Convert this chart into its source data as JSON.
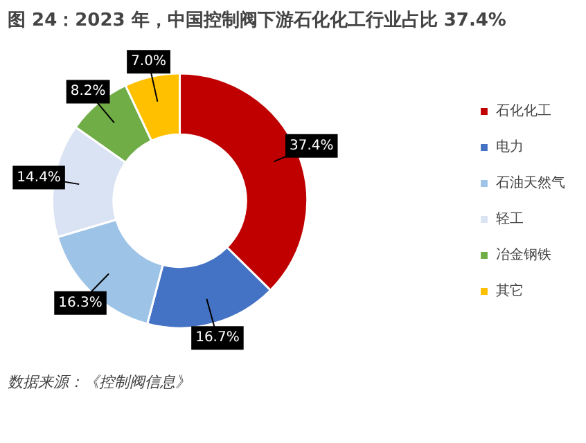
{
  "chart_data": {
    "type": "donut",
    "title": "图 24：2023 年，中国控制阀下游石化化工行业占比 37.4%",
    "categories": [
      "石化化工",
      "电力",
      "石油天然气",
      "轻工",
      "冶金钢铁",
      "其它"
    ],
    "values": [
      37.4,
      16.7,
      16.3,
      14.4,
      8.2,
      7.0
    ],
    "value_labels": [
      "37.4%",
      "16.7%",
      "16.3%",
      "14.4%",
      "8.2%",
      "7.0%"
    ],
    "colors": [
      "#c00000",
      "#4472c4",
      "#9dc3e6",
      "#dae3f3",
      "#70ad47",
      "#ffc000"
    ],
    "legend": "right",
    "annotations": [
      "数据来源：《控制阀信息》"
    ]
  }
}
